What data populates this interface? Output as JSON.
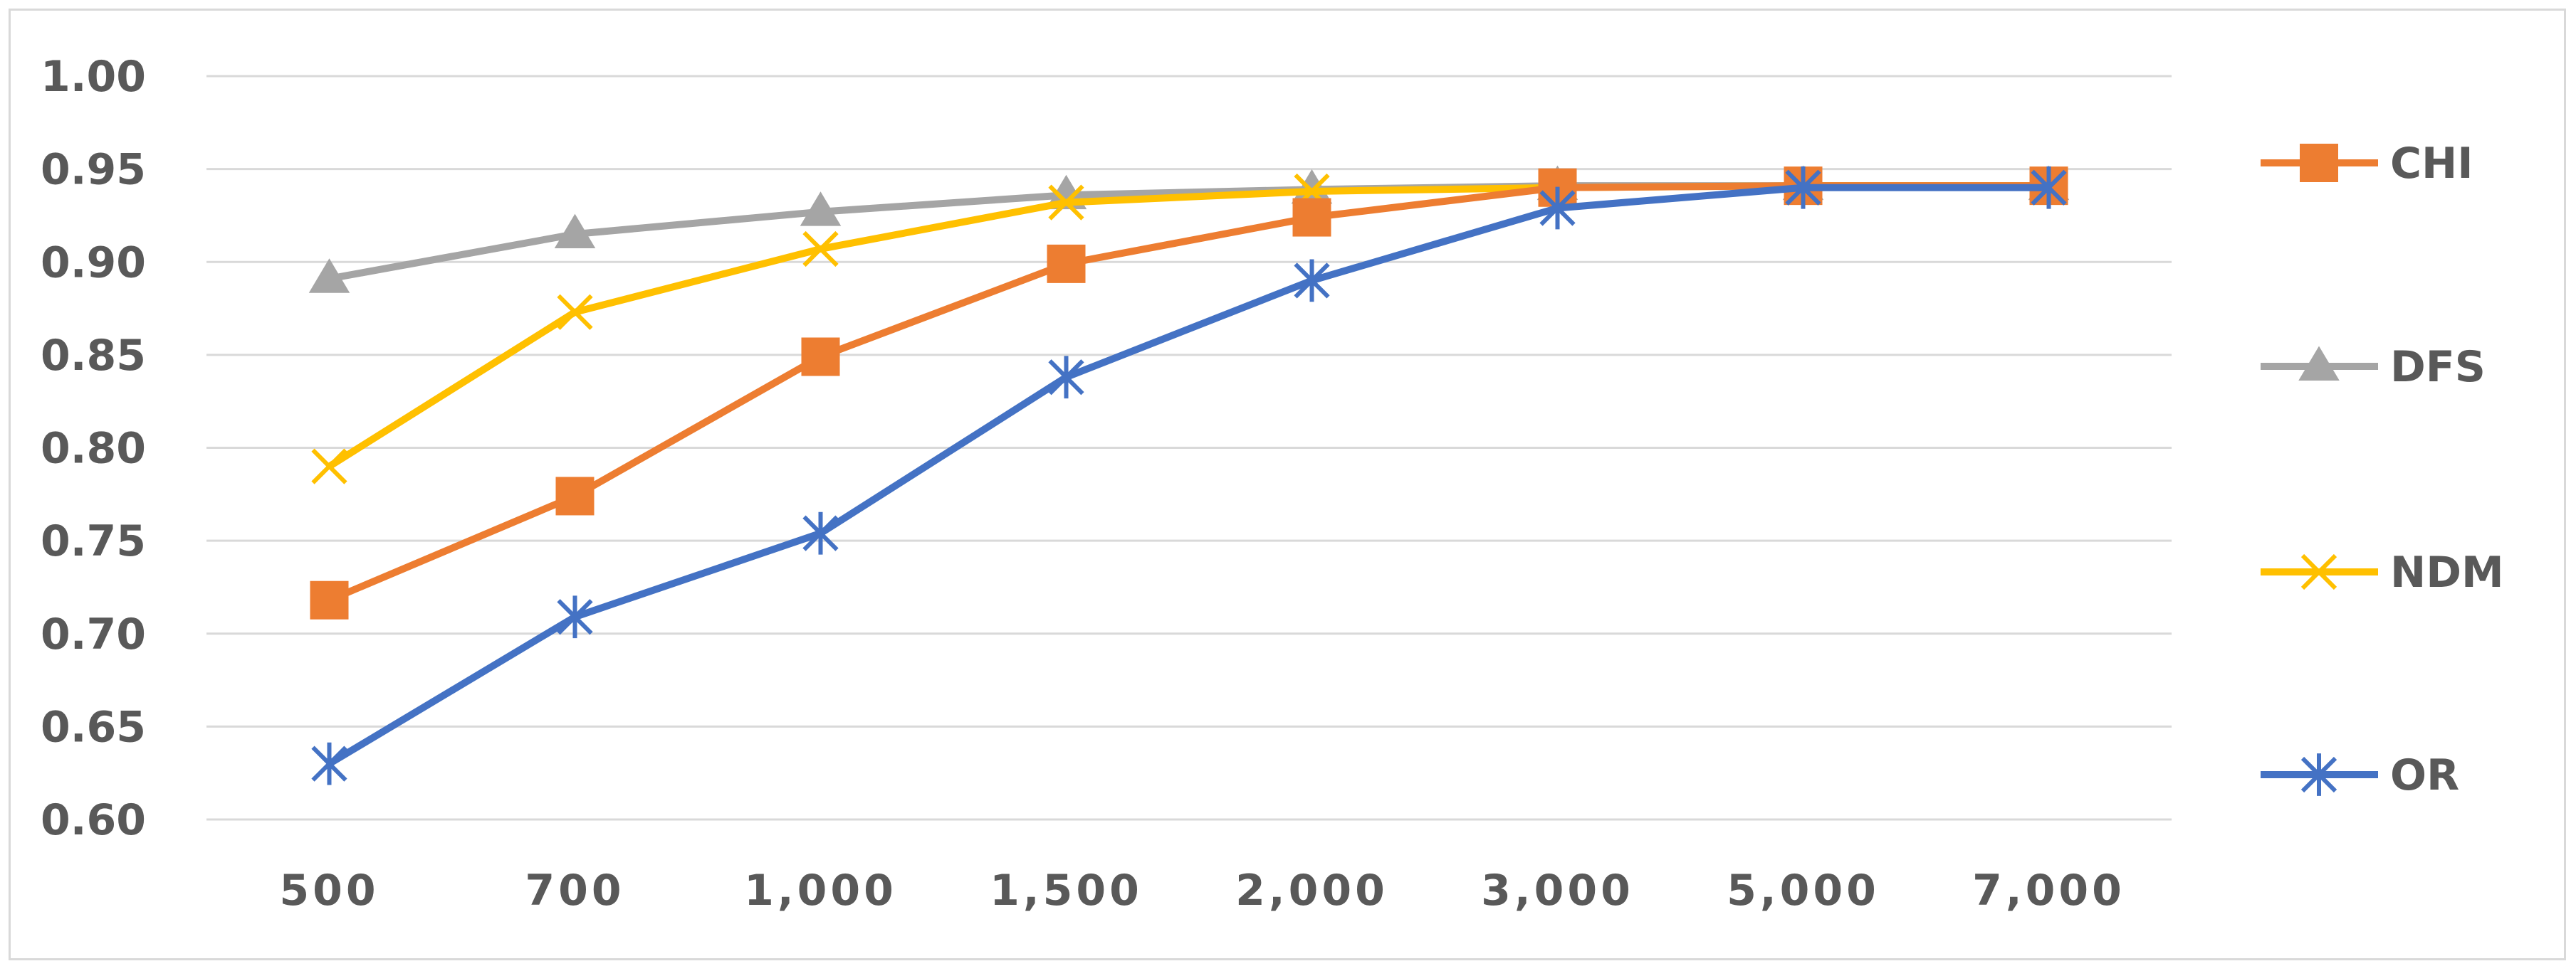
{
  "chart_data": {
    "type": "line",
    "title": "",
    "xlabel": "",
    "ylabel": "",
    "categories": [
      "500",
      "700",
      "1,000",
      "1,500",
      "2,000",
      "3,000",
      "5,000",
      "7,000"
    ],
    "ylim": [
      0.6,
      1.0
    ],
    "yticks": [
      "0.60",
      "0.65",
      "0.70",
      "0.75",
      "0.80",
      "0.85",
      "0.90",
      "0.95",
      "1.00"
    ],
    "grid": "horizontal",
    "legend_position": "right",
    "series": [
      {
        "name": "CHI",
        "marker": "square",
        "color": "#ED7D31",
        "values": [
          0.718,
          0.774,
          0.849,
          0.899,
          0.924,
          0.94,
          0.941,
          0.941
        ]
      },
      {
        "name": "DFS",
        "marker": "triangle",
        "color": "#A5A5A5",
        "values": [
          0.891,
          0.915,
          0.927,
          0.936,
          0.939,
          0.941,
          0.941,
          0.941
        ]
      },
      {
        "name": "NDM",
        "marker": "x",
        "color": "#FFC000",
        "values": [
          0.79,
          0.873,
          0.907,
          0.932,
          0.938,
          0.94,
          0.941,
          0.941
        ]
      },
      {
        "name": "OR",
        "marker": "star",
        "color": "#4472C4",
        "values": [
          0.63,
          0.709,
          0.754,
          0.838,
          0.89,
          0.929,
          0.94,
          0.94
        ]
      }
    ]
  }
}
